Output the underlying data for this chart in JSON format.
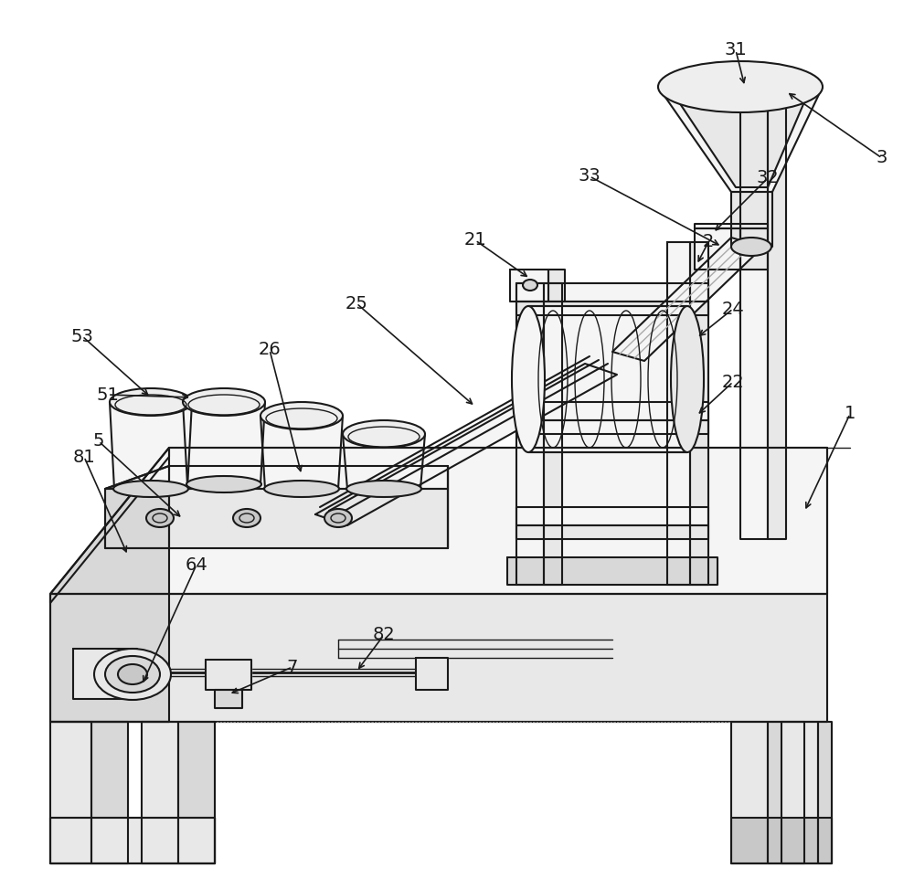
{
  "bg_color": "#ffffff",
  "line_color": "#1a1a1a",
  "lw": 1.5,
  "lw_thin": 1.0,
  "lw_thick": 2.0,
  "figsize": [
    10.0,
    9.73
  ],
  "label_fs": 14
}
